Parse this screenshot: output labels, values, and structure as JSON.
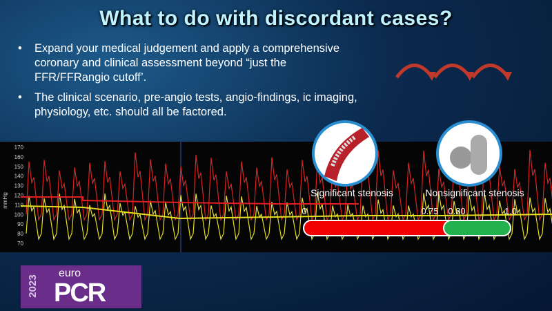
{
  "title": "What to do with discordant cases?",
  "bullets": [
    "Expand your medical judgement and apply a comprehensive coronary and clinical assessment beyond “just the FFR/FFRangio cutoff’.",
    "The clinical scenario, pre-angio tests, angio-findings, ic imaging, physiology,  etc. should all be factored."
  ],
  "tracing": {
    "axis_label": "mmHg",
    "ticks": [
      "170",
      "160",
      "150",
      "140",
      "130",
      "120",
      "110",
      "100",
      "90",
      "80",
      "70"
    ]
  },
  "scale": {
    "left_label": "Significant stenosis",
    "right_label": "Nonsignificant stenosis",
    "ticks": [
      "0",
      "0.75",
      "0.80",
      "1.0"
    ]
  },
  "logo": {
    "year": "2023",
    "brand_top": "euro",
    "brand": "PCR"
  }
}
